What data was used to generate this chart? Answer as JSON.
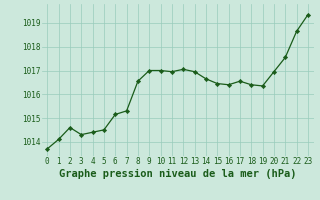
{
  "x": [
    0,
    1,
    2,
    3,
    4,
    5,
    6,
    7,
    8,
    9,
    10,
    11,
    12,
    13,
    14,
    15,
    16,
    17,
    18,
    19,
    20,
    21,
    22,
    23
  ],
  "y": [
    1013.7,
    1014.1,
    1014.6,
    1014.3,
    1014.4,
    1014.5,
    1015.15,
    1015.3,
    1016.55,
    1017.0,
    1017.0,
    1016.95,
    1017.05,
    1016.95,
    1016.65,
    1016.45,
    1016.4,
    1016.55,
    1016.4,
    1016.35,
    1016.95,
    1017.55,
    1018.65,
    1019.35
  ],
  "line_color": "#1a5c1a",
  "marker_color": "#1a5c1a",
  "bg_color": "#cce8dc",
  "grid_color": "#99ccbb",
  "xlabel": "Graphe pression niveau de la mer (hPa)",
  "xlabel_color": "#1a5c1a",
  "tick_color": "#1a5c1a",
  "ylim_min": 1013.4,
  "ylim_max": 1019.8,
  "yticks": [
    1014,
    1015,
    1016,
    1017,
    1018,
    1019
  ],
  "xticks": [
    0,
    1,
    2,
    3,
    4,
    5,
    6,
    7,
    8,
    9,
    10,
    11,
    12,
    13,
    14,
    15,
    16,
    17,
    18,
    19,
    20,
    21,
    22,
    23
  ],
  "tick_fontsize": 5.5,
  "xlabel_fontsize": 7.5
}
